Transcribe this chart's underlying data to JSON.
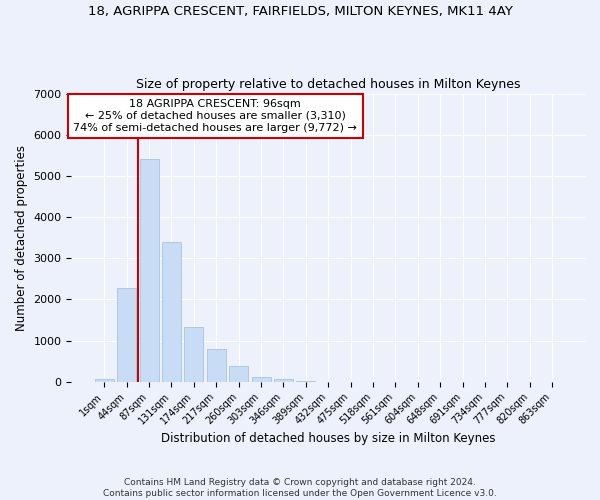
{
  "title_line1": "18, AGRIPPA CRESCENT, FAIRFIELDS, MILTON KEYNES, MK11 4AY",
  "title_line2": "Size of property relative to detached houses in Milton Keynes",
  "xlabel": "Distribution of detached houses by size in Milton Keynes",
  "ylabel": "Number of detached properties",
  "footnote1": "Contains HM Land Registry data © Crown copyright and database right 2024.",
  "footnote2": "Contains public sector information licensed under the Open Government Licence v3.0.",
  "annotation_title": "18 AGRIPPA CRESCENT: 96sqm",
  "annotation_line2": "← 25% of detached houses are smaller (3,310)",
  "annotation_line3": "74% of semi-detached houses are larger (9,772) →",
  "bar_color": "#c9dcf5",
  "bar_edge_color": "#a8c4e0",
  "vline_color": "#cc0000",
  "annotation_box_facecolor": "#ffffff",
  "annotation_border_color": "#cc0000",
  "background_color": "#edf1fc",
  "grid_color": "#ffffff",
  "categories": [
    "1sqm",
    "44sqm",
    "87sqm",
    "131sqm",
    "174sqm",
    "217sqm",
    "260sqm",
    "303sqm",
    "346sqm",
    "389sqm",
    "432sqm",
    "475sqm",
    "518sqm",
    "561sqm",
    "604sqm",
    "648sqm",
    "691sqm",
    "734sqm",
    "777sqm",
    "820sqm",
    "863sqm"
  ],
  "values": [
    55,
    2270,
    5420,
    3390,
    1320,
    800,
    380,
    125,
    55,
    14,
    4,
    1,
    0,
    0,
    0,
    0,
    0,
    0,
    0,
    0,
    0
  ],
  "ylim": [
    0,
    7000
  ],
  "yticks": [
    0,
    1000,
    2000,
    3000,
    4000,
    5000,
    6000,
    7000
  ],
  "vline_x": 1.5,
  "figsize": [
    6.0,
    5.0
  ],
  "dpi": 100
}
